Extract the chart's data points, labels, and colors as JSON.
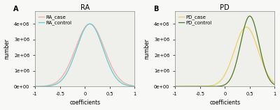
{
  "panel_A_title": "RA",
  "panel_B_title": "PD",
  "panel_A_label": "A",
  "panel_B_label": "B",
  "xlabel": "coefficients",
  "ylabel": "number",
  "xlim": [
    -1,
    1
  ],
  "ylim": [
    0,
    4800000.0
  ],
  "yticks": [
    0,
    1000000.0,
    2000000.0,
    3000000.0,
    4000000.0
  ],
  "ytick_labels": [
    "0e+00",
    "1e+06",
    "2e+06",
    "3e+06",
    "4e+06"
  ],
  "xticks": [
    -1,
    -0.5,
    0,
    0.5,
    1
  ],
  "xtick_labels": [
    "-1",
    "-0.5",
    "0",
    "0.5",
    "1"
  ],
  "RA_case_color": "#F4A8A8",
  "RA_control_color": "#5ECECE",
  "PD_case_color": "#EDD060",
  "PD_control_color": "#4E7820",
  "RA_case_mean": 0.1,
  "RA_case_std": 0.29,
  "RA_case_amplitude": 4000000.0,
  "RA_control_mean": 0.1,
  "RA_control_std": 0.265,
  "RA_control_amplitude": 4000000.0,
  "PD_case_mean": 0.43,
  "PD_case_std": 0.24,
  "PD_case_amplitude": 3800000.0,
  "PD_control_mean": 0.5,
  "PD_control_std": 0.185,
  "PD_control_amplitude": 4500000.0,
  "legend_fontsize": 5,
  "label_fontsize": 5.5,
  "tick_fontsize": 4.8,
  "title_fontsize": 7,
  "panel_label_fontsize": 7,
  "bg_color": "#EFEFEB",
  "fig_bg_color": "#F8F8F6",
  "linewidth": 0.9
}
